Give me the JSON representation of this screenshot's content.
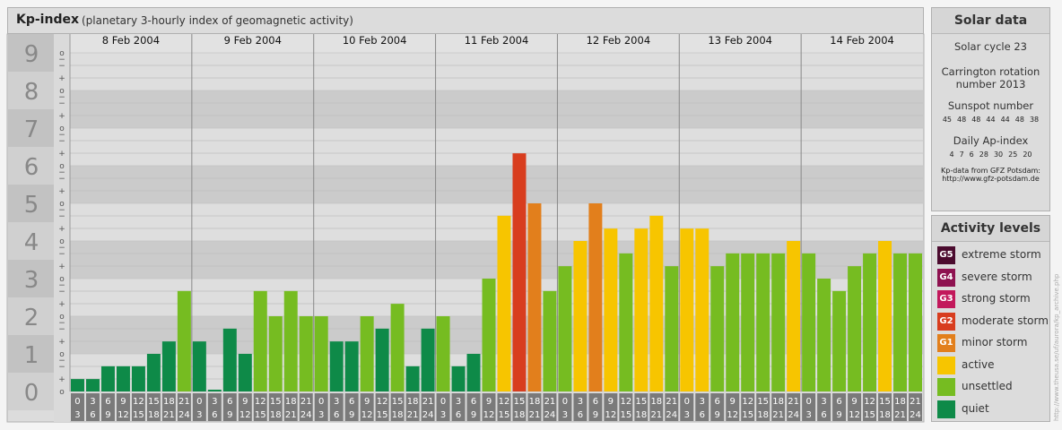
{
  "header": {
    "title": "Kp-index",
    "subtitle": "(planetary 3-hourly index of geomagnetic activity)"
  },
  "chart_data": {
    "type": "bar",
    "title": "Kp-index",
    "subtitle": "(planetary 3-hourly index of geomagnetic activity)",
    "ylim": [
      0,
      9
    ],
    "y_major_ticks": [
      "0",
      "1",
      "2",
      "3",
      "4",
      "5",
      "6",
      "7",
      "8",
      "9"
    ],
    "y_minor_ticks": [
      "o",
      "+",
      "−"
    ],
    "days": [
      "8 Feb 2004",
      "9 Feb 2004",
      "10 Feb 2004",
      "11 Feb 2004",
      "12 Feb 2004",
      "13 Feb 2004",
      "14 Feb 2004"
    ],
    "interval_start_labels": [
      "0",
      "3",
      "6",
      "9",
      "12",
      "15",
      "18",
      "21"
    ],
    "interval_end_labels": [
      "3",
      "6",
      "9",
      "12",
      "15",
      "18",
      "21",
      "24"
    ],
    "values": [
      [
        0.33,
        0.33,
        0.67,
        0.67,
        0.67,
        1.0,
        1.33,
        2.67
      ],
      [
        1.33,
        0.0,
        1.67,
        1.0,
        2.67,
        2.0,
        2.67,
        2.0
      ],
      [
        2.0,
        1.33,
        1.33,
        2.0,
        1.67,
        2.33,
        0.67,
        1.67
      ],
      [
        2.0,
        0.67,
        1.0,
        3.0,
        4.67,
        6.33,
        5.0,
        2.67
      ],
      [
        3.33,
        4.0,
        5.0,
        4.33,
        3.67,
        4.33,
        4.67,
        3.33
      ],
      [
        4.33,
        4.33,
        3.33,
        3.67,
        3.67,
        3.67,
        3.67,
        4.0
      ],
      [
        3.67,
        3.0,
        2.67,
        3.33,
        3.67,
        4.0,
        3.67,
        3.67
      ]
    ],
    "level_colors": {
      "quiet": "#0e8a48",
      "unsettled": "#76bc21",
      "active": "#f7c500",
      "G1": "#e27f1c",
      "G2": "#d83d1e",
      "G3": "#c2185b",
      "G4": "#8e1250",
      "G5": "#4b0b2e"
    },
    "grid": true,
    "legend_placement": "right"
  },
  "solar": {
    "heading": "Solar data",
    "cycle_text": "Solar cycle 23",
    "carrington_line1": "Carrington rotation",
    "carrington_line2": "number 2013",
    "sunspot_heading": "Sunspot number",
    "sunspot_values": [
      "45",
      "48",
      "48",
      "44",
      "44",
      "48",
      "38"
    ],
    "ap_heading": "Daily Ap-index",
    "ap_values": [
      "4",
      "7",
      "6",
      "28",
      "30",
      "25",
      "20"
    ],
    "source_line1": "Kp-data from GFZ Potsdam:",
    "source_line2": "http://www.gfz-potsdam.de"
  },
  "legend": {
    "heading": "Activity levels",
    "items": [
      {
        "badge": "G5",
        "label": "extreme storm",
        "color": "#4b0b2e"
      },
      {
        "badge": "G4",
        "label": "severe storm",
        "color": "#8e1250"
      },
      {
        "badge": "G3",
        "label": "strong storm",
        "color": "#c2185b"
      },
      {
        "badge": "G2",
        "label": "moderate storm",
        "color": "#d83d1e"
      },
      {
        "badge": "G1",
        "label": "minor storm",
        "color": "#e27f1c"
      },
      {
        "badge": "",
        "label": "active",
        "color": "#f7c500"
      },
      {
        "badge": "",
        "label": "unsettled",
        "color": "#76bc21"
      },
      {
        "badge": "",
        "label": "quiet",
        "color": "#0e8a48"
      }
    ]
  },
  "credit": "http://www.theusa.se/uf/aurora/kp_archive.php"
}
